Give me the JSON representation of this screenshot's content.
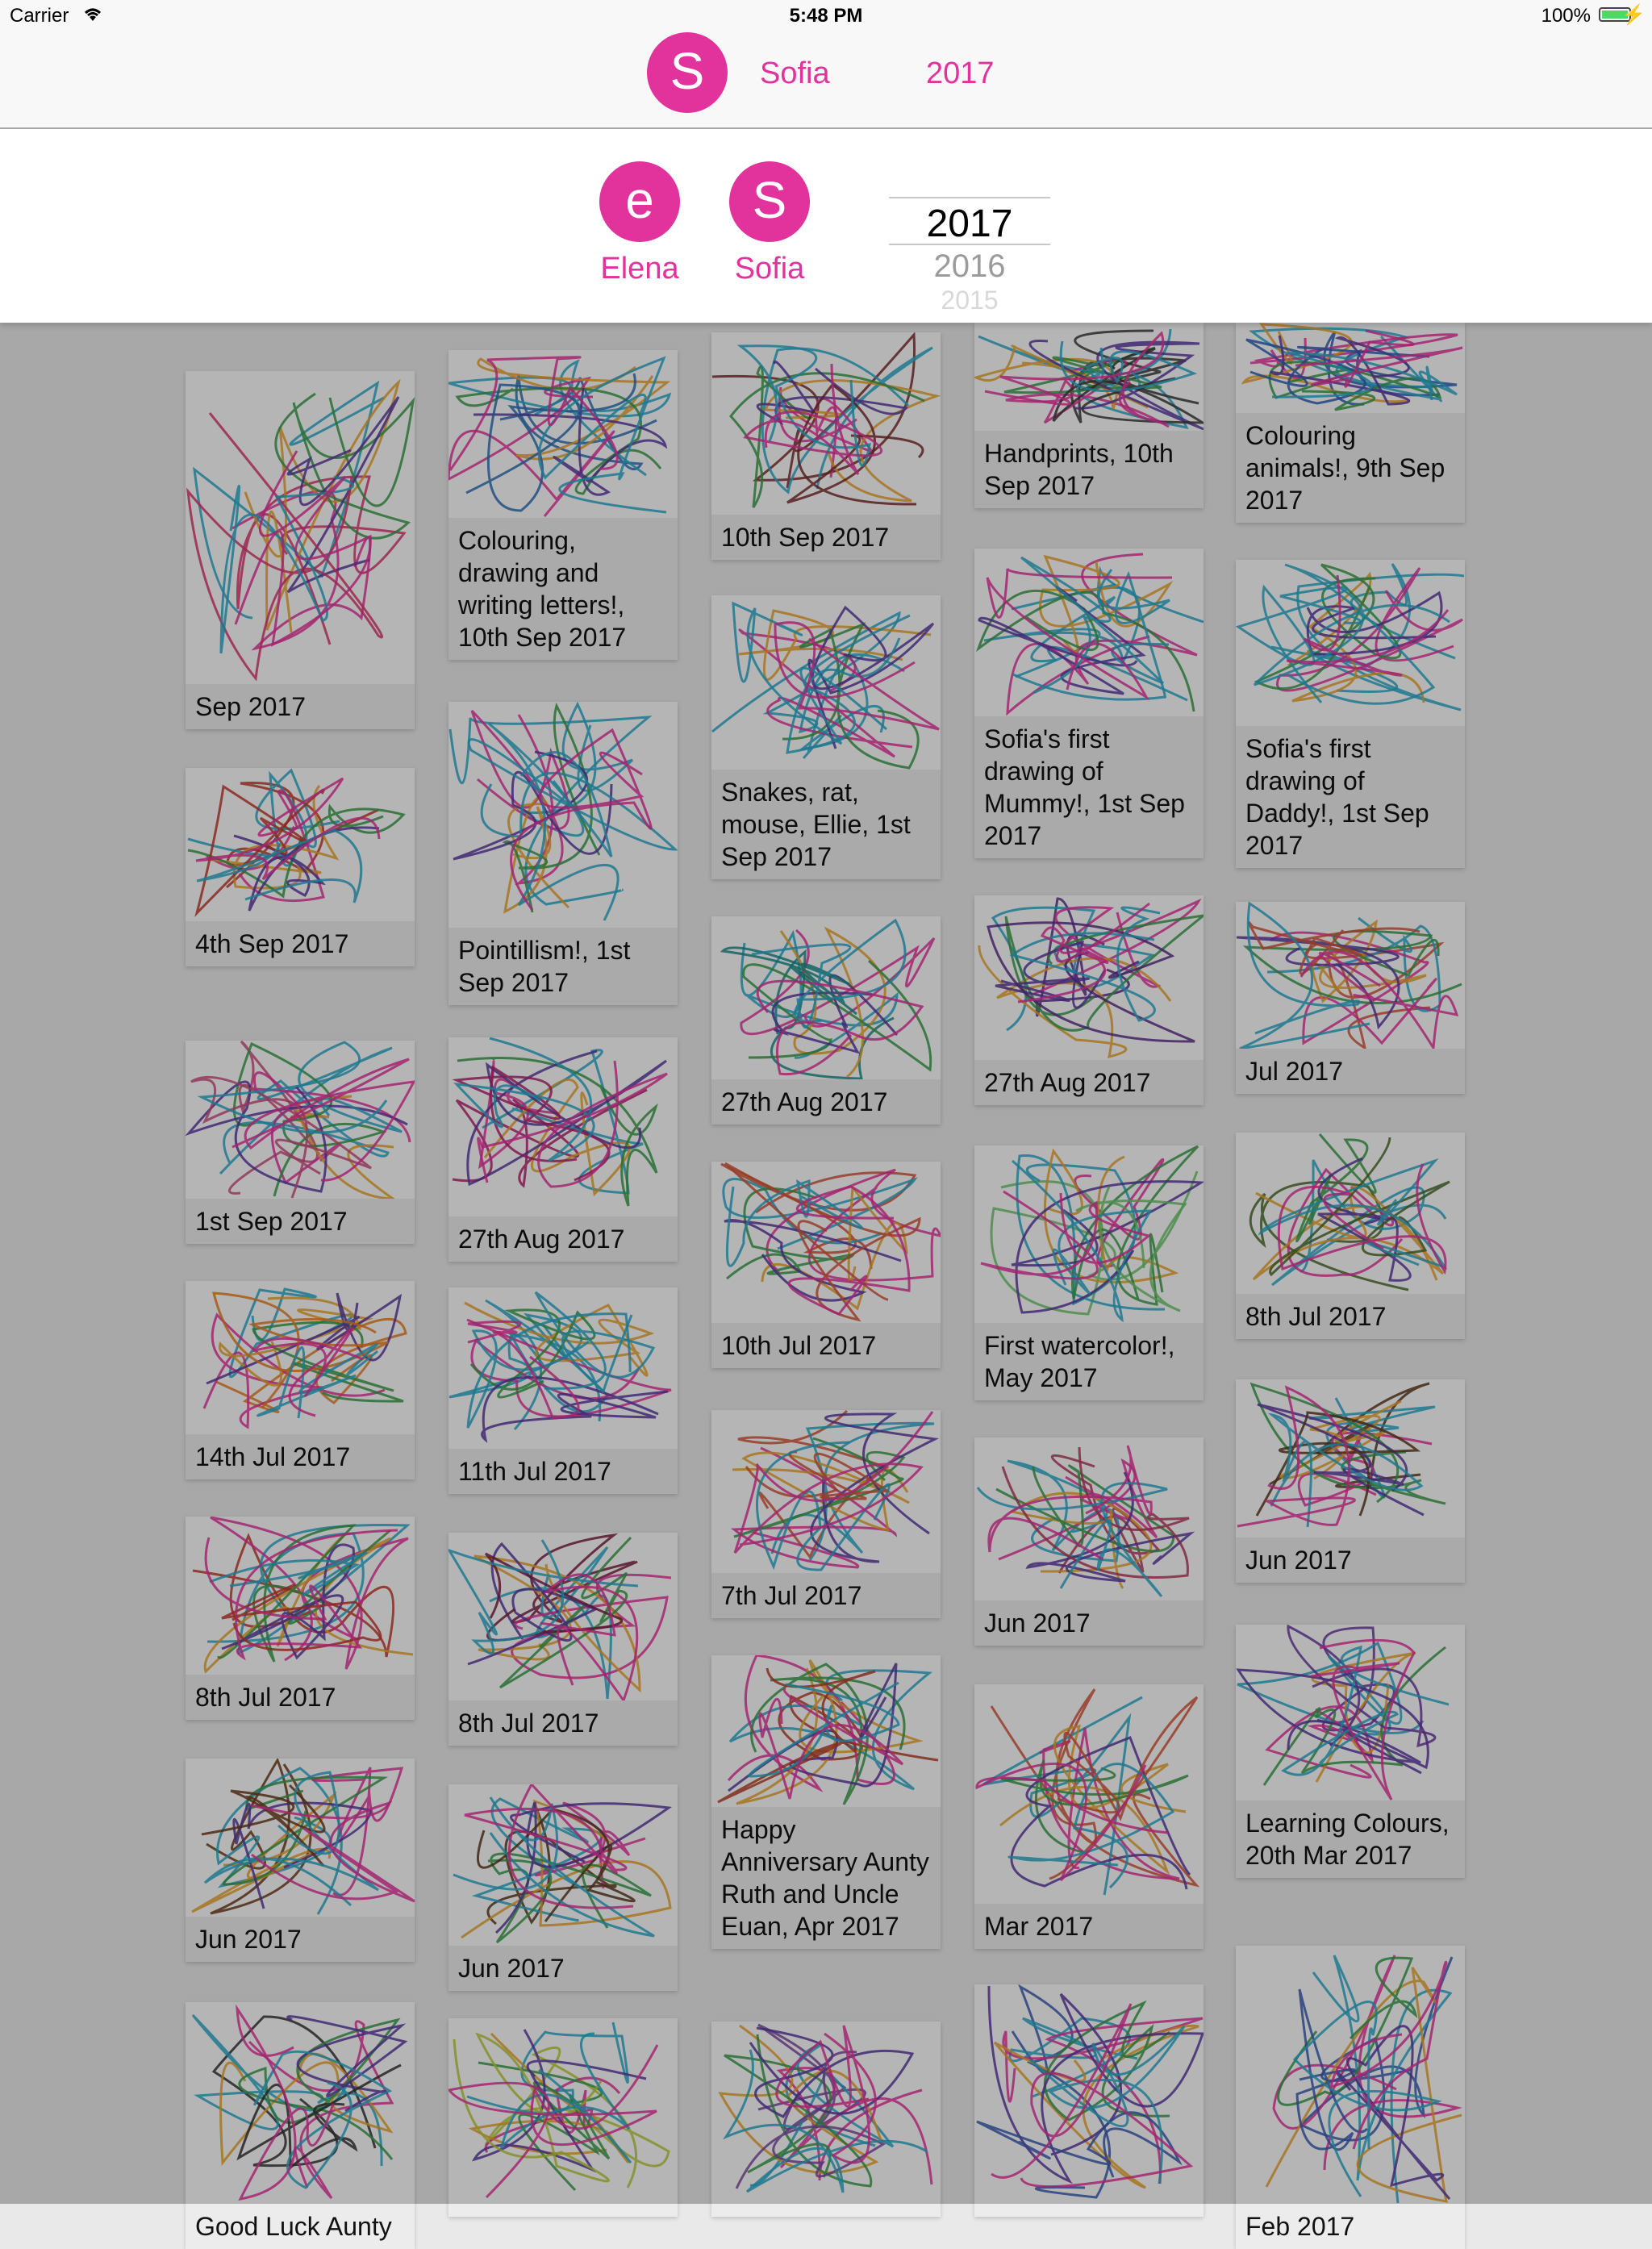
{
  "status_bar": {
    "carrier": "Carrier",
    "time": "5:48 PM",
    "battery": "100%"
  },
  "nav": {
    "avatar_letter": "S",
    "child_name": "Sofia",
    "year": "2017"
  },
  "picker": {
    "children": [
      {
        "letter": "e",
        "name": "Elena"
      },
      {
        "letter": "S",
        "name": "Sofia"
      }
    ],
    "years": [
      "2017",
      "2016",
      "2015"
    ]
  },
  "cards": [
    {
      "caption": "Sep 2017",
      "color": "#d8376f"
    },
    {
      "caption": "4th Sep 2017",
      "color": "#c0392b"
    },
    {
      "caption": "1st Sep 2017",
      "color": "#c94f7c"
    },
    {
      "caption": "14th Jul 2017",
      "color": "#e67e22"
    },
    {
      "caption": "8th Jul 2017",
      "color": "#c0392b"
    },
    {
      "caption": "Jun 2017",
      "color": "#6b3b1b"
    },
    {
      "caption": "Good Luck Aunty",
      "color": "#333333"
    },
    {
      "caption": "Colouring, drawing and writing letters!, 10th Sep 2017",
      "color": "#2e6fb5"
    },
    {
      "caption": "Pointillism!, 1st Sep 2017",
      "color": "#2aa7c8"
    },
    {
      "caption": "27th Aug 2017",
      "color": "#b0226d"
    },
    {
      "caption": "11th Jul 2017",
      "color": "#2aa7c8"
    },
    {
      "caption": "8th Jul 2017",
      "color": "#7a1f3f"
    },
    {
      "caption": "Jun 2017",
      "color": "#5a3a20"
    },
    {
      "caption": "",
      "color": "#b6c83a"
    },
    {
      "caption": "10th Sep 2017",
      "color": "#7a2a2a"
    },
    {
      "caption": "Snakes, rat, mouse, Ellie, 1st Sep 2017",
      "color": "#2aa7c8"
    },
    {
      "caption": "27th Aug 2017",
      "color": "#1b8a8a"
    },
    {
      "caption": "10th Jul 2017",
      "color": "#d2553a"
    },
    {
      "caption": "7th Jul 2017",
      "color": "#d2553a"
    },
    {
      "caption": "Happy Anniversary Aunty Ruth and Uncle Euan, Apr 2017",
      "color": "#b5402a"
    },
    {
      "caption": "",
      "color": "#7a4aa0"
    },
    {
      "caption": "Handprints, 10th Sep 2017",
      "color": "#3a3a3a"
    },
    {
      "caption": "Sofia's first drawing of Mummy!, 1st Sep 2017",
      "color": "#2aa7c8"
    },
    {
      "caption": "27th Aug 2017",
      "color": "#5a2f8a"
    },
    {
      "caption": "First watercolor!, May 2017",
      "color": "#6dc36d"
    },
    {
      "caption": "Jun 2017",
      "color": "#b23a5a"
    },
    {
      "caption": "Mar 2017",
      "color": "#d2553a"
    },
    {
      "caption": "",
      "color": "#3a5ab0"
    },
    {
      "caption": "Colouring animals!, 9th Sep 2017",
      "color": "#2e5fb5"
    },
    {
      "caption": "Sofia's first drawing of Daddy!, 1st Sep 2017",
      "color": "#2aa7c8"
    },
    {
      "caption": "Jul 2017",
      "color": "#d2553a"
    },
    {
      "caption": "8th Jul 2017",
      "color": "#4a6a2a"
    },
    {
      "caption": "Jun 2017",
      "color": "#5a3a20"
    },
    {
      "caption": "Learning Colours, 20th Mar 2017",
      "color": "#6a3aa0"
    },
    {
      "caption": "Feb 2017",
      "color": "#3a5ab0"
    }
  ]
}
